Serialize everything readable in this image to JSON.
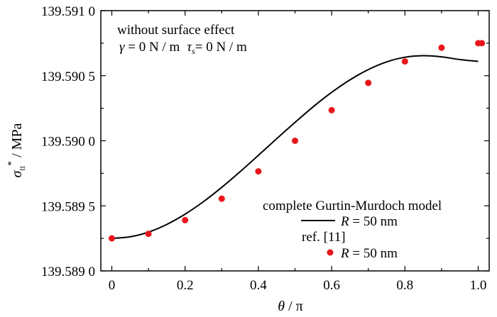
{
  "chart_data": {
    "type": "line",
    "title": "",
    "xlabel": {
      "symbol": "θ",
      "unit": "π"
    },
    "ylabel": {
      "symbol": "σ",
      "sub": "tt",
      "sup": "*",
      "unit": "MPa"
    },
    "xlim": [
      -0.03,
      1.03
    ],
    "ylim": [
      139.589,
      139.591
    ],
    "xticks": [
      "0",
      "0.2",
      "0.4",
      "0.6",
      "0.8",
      "1.0"
    ],
    "xtick_values": [
      0,
      0.2,
      0.4,
      0.6,
      0.8,
      1.0
    ],
    "yticks": [
      "139.589 0",
      "139.589 5",
      "139.590 0",
      "139.590 5",
      "139.591 0"
    ],
    "ytick_values": [
      139.589,
      139.5895,
      139.59,
      139.5905,
      139.591
    ],
    "annotation": {
      "line1": "without surface effect",
      "gamma_symbol": "γ",
      "gamma_text": " = 0 N / m",
      "tau_symbol": "τ",
      "tau_sub": "s",
      "tau_text": "= 0 N / m"
    },
    "legend": {
      "placement": "bottom-right",
      "header1": "complete Gurtin-Murdoch model",
      "header2": "ref.  [11]",
      "entry_symbol": "R",
      "entry_text": " = 50 nm"
    },
    "series": [
      {
        "style": "line",
        "color": "#000000",
        "x": [
          0,
          0.05,
          0.1,
          0.15,
          0.2,
          0.25,
          0.3,
          0.35,
          0.4,
          0.45,
          0.5,
          0.55,
          0.6,
          0.65,
          0.7,
          0.75,
          0.8,
          0.85,
          0.9,
          0.95,
          1.0
        ],
        "y": [
          139.58925,
          139.589262,
          139.589298,
          139.589357,
          139.589436,
          139.589532,
          139.589642,
          139.589762,
          139.589888,
          139.590016,
          139.590141,
          139.590262,
          139.590372,
          139.590468,
          139.590547,
          139.590606,
          139.590642,
          139.590654,
          139.590645,
          139.590624,
          139.59061
        ]
      },
      {
        "style": "scatter",
        "color": "#e8161b",
        "x": [
          0,
          0.1,
          0.2,
          0.3,
          0.4,
          0.5,
          0.6,
          0.7,
          0.8,
          0.9,
          1.0,
          1.01
        ],
        "y": [
          139.58925,
          139.589285,
          139.58939,
          139.589555,
          139.589765,
          139.59,
          139.590235,
          139.590445,
          139.59061,
          139.590715,
          139.59075,
          139.59075
        ]
      }
    ]
  }
}
